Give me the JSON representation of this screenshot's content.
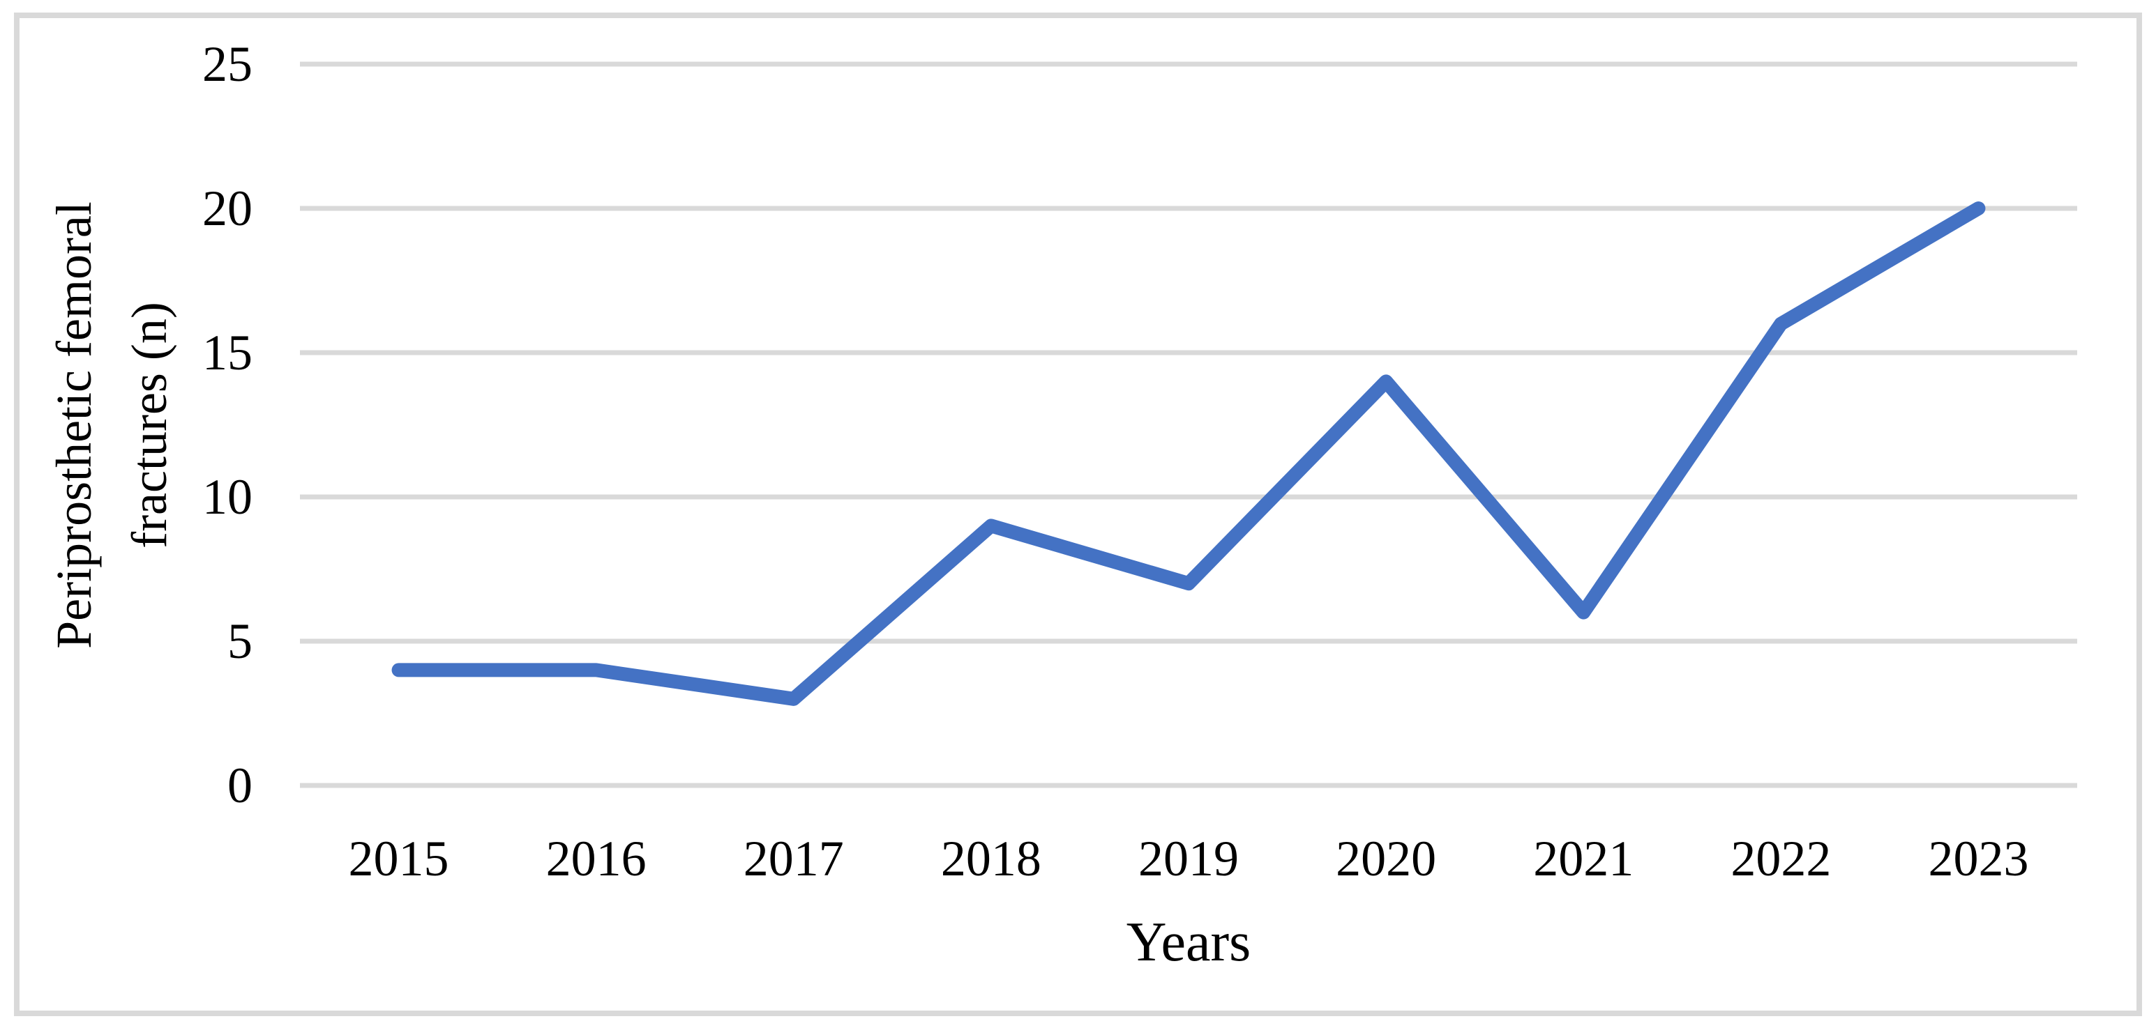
{
  "chart_data": {
    "type": "line",
    "categories": [
      "2015",
      "2016",
      "2017",
      "2018",
      "2019",
      "2020",
      "2021",
      "2022",
      "2023"
    ],
    "values": [
      4,
      4,
      3,
      9,
      7,
      14,
      6,
      16,
      20
    ],
    "title": "",
    "xlabel": "Years",
    "ylabel": "Periprosthetic femoral fractures (n)",
    "ylabel_lines": [
      "Periprosthetic femoral",
      "fractures (n)"
    ],
    "ylim": [
      0,
      25
    ],
    "yticks": [
      0,
      5,
      10,
      15,
      20,
      25
    ],
    "grid": "horizontal",
    "legend": "none",
    "line_color": "#4472C4",
    "gridline_color": "#D9D9D9",
    "frame_border_color": "#D9D9D9",
    "text_color": "#000000"
  }
}
